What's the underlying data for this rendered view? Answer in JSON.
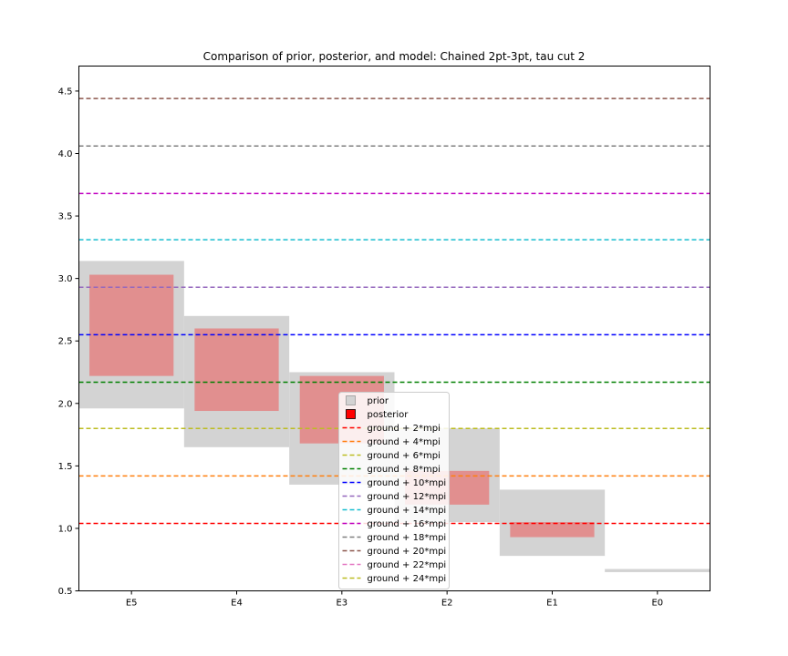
{
  "chart_data": {
    "type": "bar",
    "title": "Comparison of prior, posterior, and model: Chained 2pt-3pt, tau cut 2",
    "xlabel": "",
    "ylabel": "",
    "categories": [
      "E5",
      "E4",
      "E3",
      "E2",
      "E1",
      "E0"
    ],
    "ylim": [
      0.5,
      4.7
    ],
    "yticks": [
      "0.5",
      "1.0",
      "1.5",
      "2.0",
      "2.5",
      "3.0",
      "3.5",
      "4.0",
      "4.5"
    ],
    "grid": false,
    "legend_placement": "lower center",
    "prior": {
      "name": "prior",
      "color": "#d3d3d3",
      "ranges": [
        [
          1.96,
          3.14
        ],
        [
          1.65,
          2.7
        ],
        [
          1.35,
          2.25
        ],
        [
          1.05,
          1.8
        ],
        [
          0.78,
          1.31
        ],
        [
          0.65,
          0.675
        ]
      ]
    },
    "posterior": {
      "name": "posterior",
      "color": "#e08080",
      "ranges": [
        [
          2.22,
          3.03
        ],
        [
          1.94,
          2.6
        ],
        [
          1.68,
          2.22
        ],
        [
          1.19,
          1.46
        ],
        [
          0.93,
          1.05
        ],
        null
      ]
    },
    "model_lines": [
      {
        "name": "ground + 2*mpi",
        "y": 1.04,
        "color": "#ff0000"
      },
      {
        "name": "ground + 4*mpi",
        "y": 1.42,
        "color": "#ff7f0e"
      },
      {
        "name": "ground + 6*mpi",
        "y": 1.8,
        "color": "#bcbd22"
      },
      {
        "name": "ground + 8*mpi",
        "y": 2.17,
        "color": "#008000"
      },
      {
        "name": "ground + 10*mpi",
        "y": 2.55,
        "color": "#0000ff"
      },
      {
        "name": "ground + 12*mpi",
        "y": 2.93,
        "color": "#9467bd"
      },
      {
        "name": "ground + 14*mpi",
        "y": 3.31,
        "color": "#17becf"
      },
      {
        "name": "ground + 16*mpi",
        "y": 3.68,
        "color": "#c000c0"
      },
      {
        "name": "ground + 18*mpi",
        "y": 4.06,
        "color": "#7f7f7f"
      },
      {
        "name": "ground + 20*mpi",
        "y": 4.44,
        "color": "#8c564b"
      },
      {
        "name": "ground + 22*mpi",
        "y": null,
        "color": "#e377c2"
      },
      {
        "name": "ground + 24*mpi",
        "y": null,
        "color": "#bcbd22"
      }
    ]
  }
}
